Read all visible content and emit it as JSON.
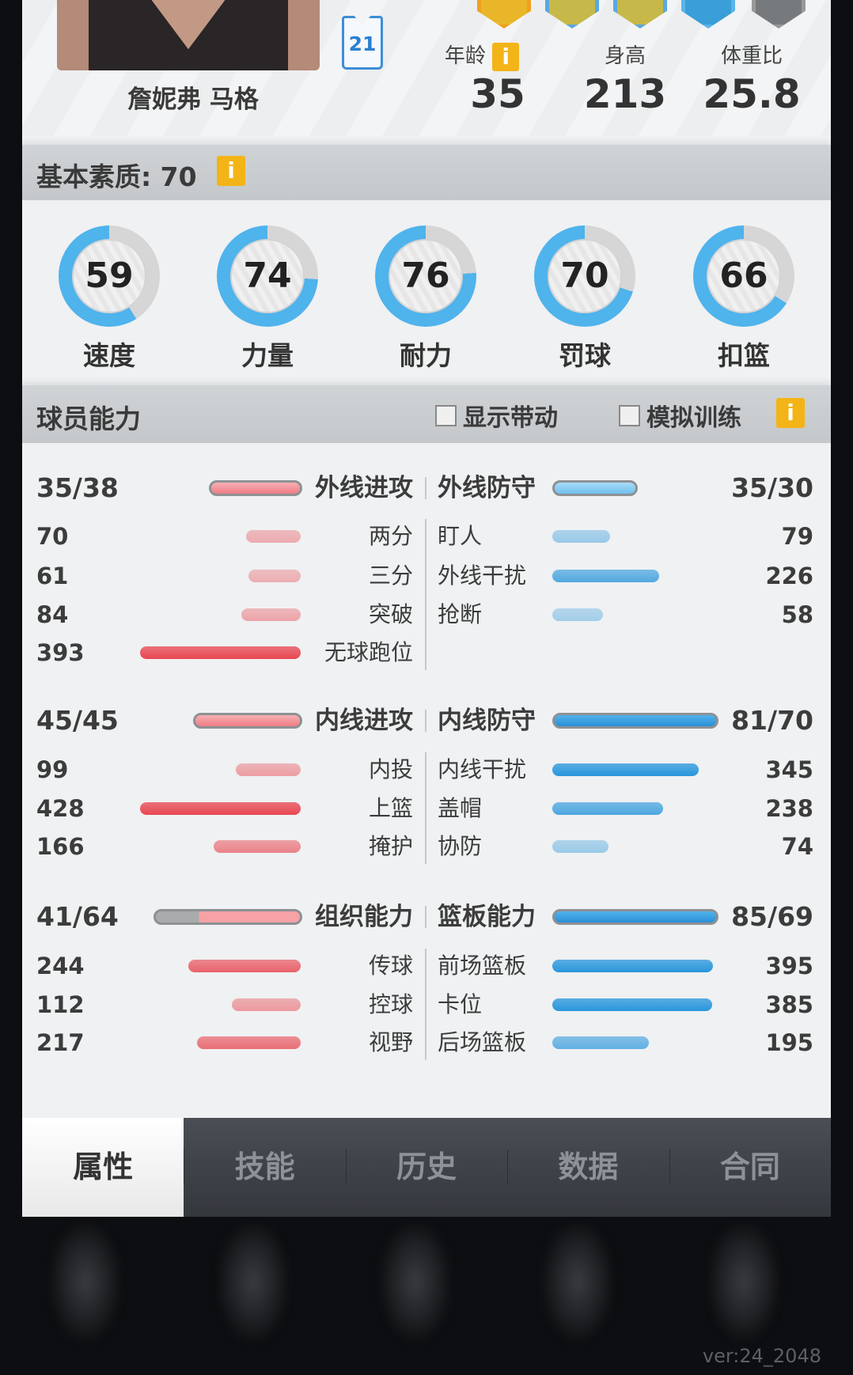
{
  "player": {
    "name": "詹妮弗 马格",
    "jersey_number": "21",
    "stats": [
      {
        "label": "年龄",
        "value": "35",
        "info": true
      },
      {
        "label": "身高",
        "value": "213"
      },
      {
        "label": "体重比",
        "value": "25.8"
      }
    ],
    "badges": [
      {
        "color": "#e8b628",
        "border": "#f0a020"
      },
      {
        "color": "#c7b84a",
        "border": "#5aa8e0"
      },
      {
        "color": "#c7b84a",
        "border": "#5aa8e0"
      },
      {
        "color": "#3a9ed8",
        "border": "#5ab4ea"
      },
      {
        "color": "#777a7d",
        "border": "#999"
      }
    ]
  },
  "info_icon": "i",
  "basic": {
    "title": "基本素质: 70",
    "rings": [
      {
        "label": "速度",
        "value": 59
      },
      {
        "label": "力量",
        "value": 74
      },
      {
        "label": "耐力",
        "value": 76
      },
      {
        "label": "罚球",
        "value": 70
      },
      {
        "label": "扣篮",
        "value": 66
      }
    ]
  },
  "ability": {
    "title": "球员能力",
    "checkbox_show_change": "显示带动",
    "checkbox_sim_training": "模拟训练",
    "groups": [
      {
        "left": {
          "label": "外线进攻",
          "value": "35/38"
        },
        "right": {
          "label": "外线防守",
          "value": "35/30"
        },
        "rows": [
          {
            "lv": "70",
            "ll": "两分",
            "rl": "盯人",
            "rv": "79"
          },
          {
            "lv": "61",
            "ll": "三分",
            "rl": "外线干扰",
            "rv": "226"
          },
          {
            "lv": "84",
            "ll": "突破",
            "rl": "抢断",
            "rv": "58"
          },
          {
            "lv": "393",
            "ll": "无球跑位",
            "rl": "",
            "rv": ""
          }
        ]
      },
      {
        "left": {
          "label": "内线进攻",
          "value": "45/45"
        },
        "right": {
          "label": "内线防守",
          "value": "81/70"
        },
        "rows": [
          {
            "lv": "99",
            "ll": "内投",
            "rl": "内线干扰",
            "rv": "345"
          },
          {
            "lv": "428",
            "ll": "上篮",
            "rl": "盖帽",
            "rv": "238"
          },
          {
            "lv": "166",
            "ll": "掩护",
            "rl": "协防",
            "rv": "74"
          }
        ]
      },
      {
        "left": {
          "label": "组织能力",
          "value": "41/64"
        },
        "right": {
          "label": "篮板能力",
          "value": "85/69"
        },
        "rows": [
          {
            "lv": "244",
            "ll": "传球",
            "rl": "前场篮板",
            "rv": "395"
          },
          {
            "lv": "112",
            "ll": "控球",
            "rl": "卡位",
            "rv": "385"
          },
          {
            "lv": "217",
            "ll": "视野",
            "rl": "后场篮板",
            "rv": "195"
          }
        ]
      }
    ]
  },
  "tabs": [
    {
      "label": "属性",
      "active": true
    },
    {
      "label": "技能"
    },
    {
      "label": "历史"
    },
    {
      "label": "数据"
    },
    {
      "label": "合同"
    }
  ],
  "version": "ver:24_2048",
  "colors": {
    "attack": "#e84c55",
    "defense": "#3aa0e0",
    "ring_fill": "#4fb3ec",
    "ring_empty": "#d6d6d6",
    "info": "#f3b418"
  }
}
